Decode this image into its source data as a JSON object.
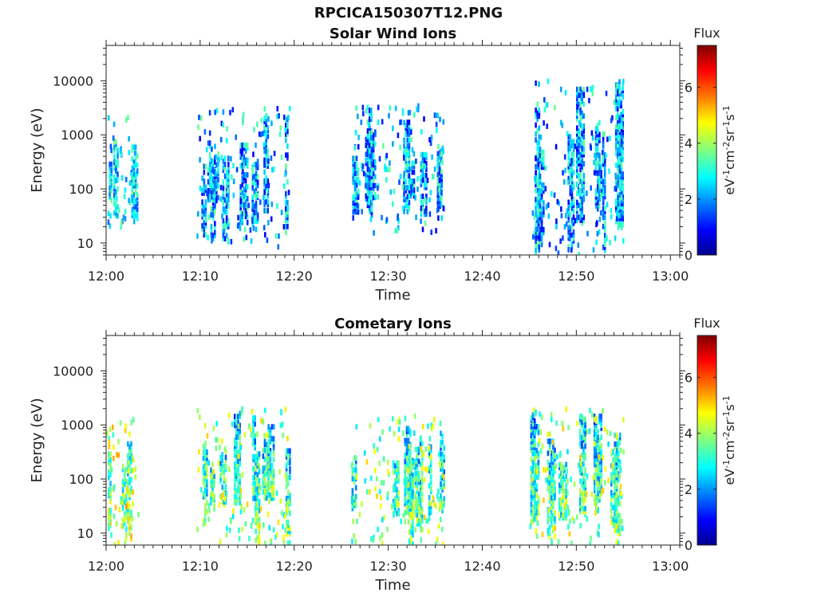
{
  "figure_title": "RPCICA150307T12.PNG",
  "colormap": {
    "name": "jet",
    "stops": [
      "#00008f",
      "#0000ff",
      "#00ffff",
      "#7fff7f",
      "#ffff00",
      "#ff7f00",
      "#ff0000",
      "#800000"
    ]
  },
  "chart_data": [
    {
      "type": "heatmap",
      "title": "Solar Wind Ions",
      "xlabel": "Time",
      "ylabel": "Energy (eV)",
      "xticks": [
        "12:00",
        "12:10",
        "12:20",
        "12:30",
        "12:40",
        "12:50",
        "13:00"
      ],
      "xlim_minutes": [
        0,
        61
      ],
      "yscale": "log",
      "ylim": [
        6,
        45000
      ],
      "yticks": [
        "10",
        "100",
        "1000",
        "10000"
      ],
      "colorbar": {
        "title": "Flux",
        "unit_label": "eV-1cm-2sr-1s-1",
        "range": [
          0,
          7.5
        ],
        "ticks": [
          "0",
          "2",
          "4",
          "6"
        ]
      },
      "clusters": [
        {
          "t_start": 0.0,
          "t_end": 3.0,
          "e_min": 15,
          "e_max": 2500,
          "flux_mean": 2.6,
          "flux_spread": 1.2
        },
        {
          "t_start": 9.6,
          "t_end": 19.5,
          "e_min": 8,
          "e_max": 3500,
          "flux_mean": 2.2,
          "flux_spread": 1.4
        },
        {
          "t_start": 26.0,
          "t_end": 35.8,
          "e_min": 15,
          "e_max": 3500,
          "flux_mean": 2.2,
          "flux_spread": 1.4
        },
        {
          "t_start": 45.2,
          "t_end": 55.0,
          "e_min": 6,
          "e_max": 11000,
          "flux_mean": 2.2,
          "flux_spread": 1.4
        }
      ]
    },
    {
      "type": "heatmap",
      "title": "Cometary Ions",
      "xlabel": "Time",
      "ylabel": "Energy (eV)",
      "xticks": [
        "12:00",
        "12:10",
        "12:20",
        "12:30",
        "12:40",
        "12:50",
        "13:00"
      ],
      "xlim_minutes": [
        0,
        61
      ],
      "yscale": "log",
      "ylim": [
        6,
        45000
      ],
      "yticks": [
        "10",
        "100",
        "1000",
        "10000"
      ],
      "colorbar": {
        "title": "Flux",
        "unit_label": "eV-1cm-2sr-1s-1",
        "range": [
          0,
          7.5
        ],
        "ticks": [
          "0",
          "2",
          "4",
          "6"
        ]
      },
      "clusters": [
        {
          "t_start": 0.0,
          "t_end": 3.4,
          "e_min": 6,
          "e_max": 1500,
          "flux_mean": 4.2,
          "flux_spread": 1.3
        },
        {
          "t_start": 9.6,
          "t_end": 19.5,
          "e_min": 6,
          "e_max": 2000,
          "flux_mean": 3.8,
          "flux_spread": 1.3
        },
        {
          "t_start": 26.0,
          "t_end": 35.8,
          "e_min": 6,
          "e_max": 1500,
          "flux_mean": 3.8,
          "flux_spread": 1.3
        },
        {
          "t_start": 45.0,
          "t_end": 55.0,
          "e_min": 6,
          "e_max": 2000,
          "flux_mean": 3.8,
          "flux_spread": 1.3
        }
      ]
    }
  ]
}
